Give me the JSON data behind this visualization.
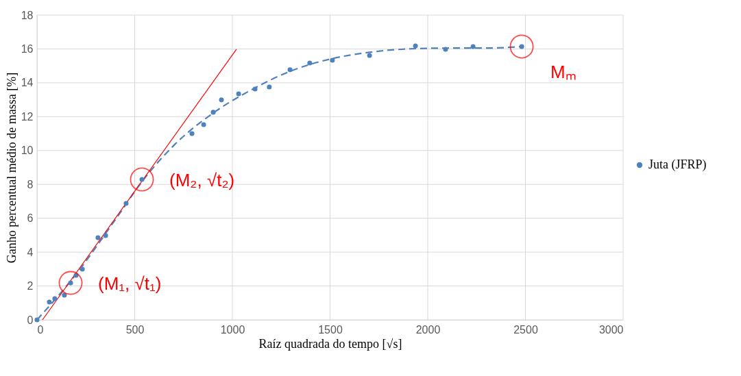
{
  "chart_data": {
    "type": "scatter",
    "xlabel": "Raíz quadrada do tempo [√s]",
    "ylabel": "Ganho percentual médio de massa [%]",
    "xlim": [
      0,
      3000
    ],
    "xticks": [
      0,
      500,
      1000,
      1500,
      2000,
      2500,
      3000
    ],
    "ylim": [
      0,
      18
    ],
    "yticks": [
      0,
      2,
      4,
      6,
      8,
      10,
      12,
      14,
      16,
      18
    ],
    "grid": true,
    "legend": "right",
    "marker": "circle",
    "series": [
      {
        "name": "Juta (JFRP)",
        "color": "#4f81bd",
        "x": [
          0,
          63,
          91,
          140,
          172,
          200,
          232,
          312,
          351,
          456,
          537,
          793,
          853,
          902,
          944,
          1032,
          1116,
          1189,
          1295,
          1396,
          1512,
          1702,
          1937,
          2091,
          2232,
          2481
        ],
        "values": [
          0,
          1.05,
          1.25,
          1.46,
          2.18,
          2.63,
          2.99,
          4.85,
          4.98,
          6.88,
          8.29,
          11.0,
          11.53,
          12.26,
          12.99,
          13.35,
          13.63,
          13.75,
          14.77,
          15.17,
          15.33,
          15.61,
          16.18,
          15.98,
          16.14,
          16.14
        ]
      },
      {
        "type": "line",
        "line_style": "dashed",
        "marker": "none",
        "color": "#4f81bd",
        "x": [
          0,
          200,
          400,
          540,
          700,
          900,
          1100,
          1300,
          1500,
          1700,
          1900,
          2100,
          2300,
          2481
        ],
        "values": [
          0,
          2.7,
          5.9,
          8.2,
          10.3,
          12.2,
          13.6,
          14.7,
          15.4,
          15.8,
          16.0,
          16.05,
          16.05,
          16.14
        ]
      },
      {
        "type": "line",
        "line_style": "solid",
        "marker": "none",
        "color": "#ff0000",
        "x": [
          28,
          1021
        ],
        "values": [
          0,
          15.98
        ]
      }
    ],
    "annotations": [
      {
        "text": "(M₁, √t₁)",
        "x": 172,
        "y": 2.18
      },
      {
        "text": "(M₂, √t₂)",
        "x": 537,
        "y": 8.29
      },
      {
        "text": "Mₘ",
        "x": 2481,
        "y": 16.14
      }
    ]
  }
}
